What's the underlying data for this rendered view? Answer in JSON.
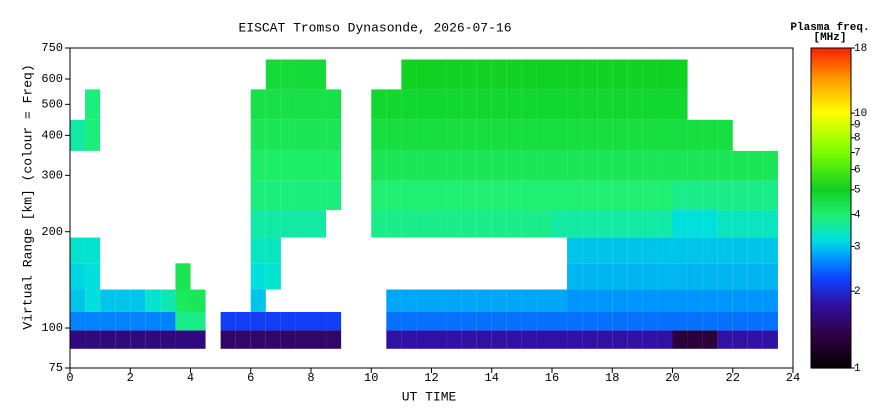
{
  "chart_data": {
    "type": "heatmap",
    "title": "EISCAT Tromso Dynasonde, 2026-07-16",
    "x_label": "UT TIME",
    "y_label": "Virtual Range [km] (colour = Freq)",
    "colorbar_title": [
      "Plasma freq.",
      "[MHz]"
    ],
    "x": [
      0.25,
      0.75,
      1.25,
      1.75,
      2.25,
      2.75,
      3.25,
      3.75,
      4.25,
      4.75,
      5.25,
      5.75,
      6.25,
      6.75,
      7.25,
      7.75,
      8.25,
      8.75,
      9.25,
      9.75,
      10.25,
      10.75,
      11.25,
      11.75,
      12.25,
      12.75,
      13.25,
      13.75,
      14.25,
      14.75,
      15.25,
      15.75,
      16.25,
      16.75,
      17.25,
      17.75,
      18.25,
      18.75,
      19.25,
      19.75,
      20.25,
      20.75,
      21.25,
      21.75,
      22.25,
      22.75,
      23.25,
      23.75
    ],
    "y": [
      92,
      105,
      120,
      145,
      175,
      210,
      260,
      320,
      400,
      500,
      620
    ],
    "values": [
      [
        1.6,
        1.6,
        1.6,
        1.6,
        1.6,
        1.6,
        1.6,
        1.6,
        1.6,
        null,
        1.5,
        1.5,
        1.5,
        1.5,
        1.5,
        1.5,
        1.5,
        1.5,
        null,
        null,
        null,
        1.8,
        1.8,
        1.8,
        1.8,
        1.8,
        1.8,
        1.8,
        1.8,
        1.8,
        1.8,
        1.8,
        1.8,
        1.8,
        1.8,
        1.8,
        1.8,
        1.8,
        1.8,
        1.8,
        1.3,
        1.3,
        1.3,
        1.8,
        1.8,
        1.8,
        1.8,
        null
      ],
      [
        2.6,
        2.6,
        2.6,
        2.6,
        2.6,
        2.6,
        2.6,
        3.8,
        3.8,
        null,
        2.2,
        2.2,
        2.2,
        2.2,
        2.2,
        2.2,
        2.2,
        2.2,
        null,
        null,
        null,
        2.5,
        2.5,
        2.5,
        2.5,
        2.5,
        2.5,
        2.5,
        2.5,
        2.5,
        2.5,
        2.5,
        2.5,
        2.5,
        2.5,
        2.5,
        2.5,
        2.5,
        2.5,
        2.5,
        2.5,
        2.5,
        2.5,
        2.5,
        2.5,
        2.5,
        2.5,
        null
      ],
      [
        3.0,
        3.2,
        3.0,
        3.0,
        3.0,
        3.3,
        3.5,
        4.2,
        4.3,
        null,
        null,
        null,
        3.0,
        null,
        null,
        null,
        null,
        null,
        null,
        null,
        null,
        2.8,
        2.8,
        2.8,
        2.8,
        2.8,
        2.8,
        2.8,
        2.8,
        2.8,
        2.8,
        2.8,
        2.8,
        2.7,
        2.7,
        2.7,
        2.7,
        2.7,
        2.7,
        2.7,
        2.7,
        2.7,
        2.7,
        2.7,
        2.7,
        2.7,
        2.7,
        null
      ],
      [
        3.1,
        3.2,
        null,
        null,
        null,
        null,
        null,
        4.4,
        null,
        null,
        null,
        null,
        3.2,
        3.3,
        null,
        null,
        null,
        null,
        null,
        null,
        null,
        null,
        null,
        null,
        null,
        null,
        null,
        null,
        null,
        null,
        null,
        null,
        null,
        2.9,
        2.9,
        2.9,
        2.9,
        2.9,
        2.9,
        2.9,
        2.9,
        2.9,
        2.9,
        2.9,
        2.9,
        2.9,
        2.9,
        null
      ],
      [
        3.3,
        3.3,
        null,
        null,
        null,
        null,
        null,
        null,
        null,
        null,
        null,
        null,
        3.4,
        3.4,
        null,
        null,
        null,
        null,
        null,
        null,
        null,
        null,
        null,
        null,
        null,
        null,
        null,
        null,
        null,
        null,
        null,
        null,
        null,
        3.0,
        3.0,
        3.0,
        3.0,
        3.0,
        3.0,
        3.0,
        3.0,
        3.0,
        3.0,
        3.0,
        3.0,
        3.0,
        3.0,
        null
      ],
      [
        null,
        null,
        null,
        null,
        null,
        null,
        null,
        null,
        null,
        null,
        null,
        null,
        3.6,
        3.6,
        3.6,
        3.6,
        3.6,
        null,
        null,
        null,
        3.8,
        3.8,
        3.8,
        3.8,
        3.8,
        3.8,
        3.8,
        3.8,
        3.8,
        3.8,
        3.8,
        3.8,
        3.6,
        3.6,
        3.6,
        3.6,
        3.6,
        3.6,
        3.6,
        3.6,
        3.2,
        3.2,
        3.2,
        3.4,
        3.4,
        3.4,
        3.4,
        null
      ],
      [
        null,
        null,
        null,
        null,
        null,
        null,
        null,
        null,
        null,
        null,
        null,
        null,
        3.9,
        3.9,
        3.9,
        3.9,
        3.9,
        3.9,
        null,
        null,
        4.0,
        4.0,
        4.0,
        4.0,
        4.0,
        4.0,
        4.0,
        4.0,
        4.0,
        4.0,
        4.0,
        4.0,
        4.0,
        4.0,
        4.0,
        4.0,
        4.0,
        4.0,
        4.0,
        4.0,
        3.8,
        3.8,
        3.8,
        3.8,
        3.8,
        3.8,
        3.8,
        null
      ],
      [
        null,
        null,
        null,
        null,
        null,
        null,
        null,
        null,
        null,
        null,
        null,
        null,
        4.1,
        4.1,
        4.1,
        4.1,
        4.1,
        4.1,
        null,
        null,
        4.3,
        4.3,
        4.3,
        4.3,
        4.3,
        4.3,
        4.3,
        4.3,
        4.3,
        4.3,
        4.3,
        4.3,
        4.3,
        4.3,
        4.3,
        4.3,
        4.3,
        4.3,
        4.3,
        4.3,
        4.3,
        4.3,
        4.3,
        4.3,
        4.3,
        4.3,
        4.3,
        null
      ],
      [
        3.6,
        3.9,
        null,
        null,
        null,
        null,
        null,
        null,
        null,
        null,
        null,
        null,
        4.3,
        4.3,
        4.3,
        4.3,
        4.3,
        4.3,
        null,
        null,
        4.6,
        4.6,
        4.6,
        4.6,
        4.6,
        4.6,
        4.6,
        4.6,
        4.6,
        4.6,
        4.6,
        4.6,
        4.6,
        4.6,
        4.6,
        4.6,
        4.6,
        4.6,
        4.6,
        4.6,
        4.6,
        4.6,
        4.6,
        4.6,
        null,
        null,
        null,
        null
      ],
      [
        null,
        3.9,
        null,
        null,
        null,
        null,
        null,
        null,
        null,
        null,
        null,
        null,
        4.5,
        4.5,
        4.5,
        4.5,
        4.5,
        4.5,
        null,
        null,
        4.8,
        4.8,
        4.8,
        4.8,
        4.8,
        4.8,
        4.8,
        4.8,
        4.8,
        4.8,
        4.8,
        4.8,
        4.8,
        4.8,
        4.8,
        4.8,
        4.8,
        4.8,
        4.8,
        4.8,
        4.8,
        null,
        null,
        null,
        null,
        null,
        null,
        null
      ],
      [
        null,
        null,
        null,
        null,
        null,
        null,
        null,
        null,
        null,
        null,
        null,
        null,
        null,
        4.7,
        4.7,
        4.7,
        4.7,
        null,
        null,
        null,
        null,
        null,
        5.0,
        5.0,
        5.0,
        5.0,
        5.0,
        5.0,
        5.0,
        5.0,
        5.0,
        5.0,
        5.0,
        5.0,
        5.0,
        5.0,
        5.0,
        5.0,
        5.0,
        5.0,
        5.0,
        null,
        null,
        null,
        null,
        null,
        null,
        null
      ]
    ],
    "xlim": [
      0,
      24
    ],
    "xticks": [
      0,
      2,
      4,
      6,
      8,
      10,
      12,
      14,
      16,
      18,
      20,
      22,
      24
    ],
    "ylim": [
      75,
      750
    ],
    "yticks": [
      75,
      100,
      200,
      300,
      400,
      500,
      600,
      750
    ],
    "log_y": true,
    "clim": [
      1,
      18
    ],
    "cticks": [
      1,
      2,
      3,
      4,
      5,
      6,
      7,
      8,
      9,
      10,
      18
    ],
    "log_color": true,
    "colormap": {
      "stops": [
        0,
        0.1,
        0.2,
        0.28,
        0.34,
        0.4,
        0.48,
        0.56,
        0.68,
        0.8,
        0.9,
        1
      ],
      "colors": [
        "#000000",
        "#300040",
        "#3010a0",
        "#1040ff",
        "#0090ff",
        "#00e0e0",
        "#20f070",
        "#10d020",
        "#80ff00",
        "#ffff00",
        "#ffa000",
        "#ff2000"
      ]
    }
  }
}
